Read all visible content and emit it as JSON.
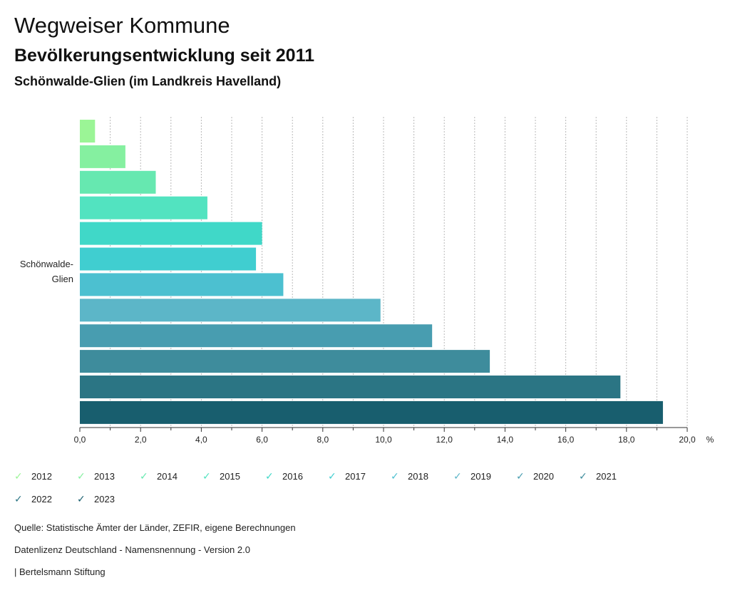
{
  "header": {
    "title": "Wegweiser Kommune",
    "subtitle": "Bevölkerungsentwicklung seit 2011",
    "region": "Schönwalde-Glien (im Landkreis Havelland)"
  },
  "chart_data": {
    "type": "bar",
    "orientation": "horizontal",
    "categories": [
      "Schönwalde-Glien"
    ],
    "category_label_lines": [
      "Schönwalde-",
      "Glien"
    ],
    "series": [
      {
        "name": "2012",
        "values": [
          0.5
        ],
        "color": "#9bf596"
      },
      {
        "name": "2013",
        "values": [
          1.5
        ],
        "color": "#85f0a0"
      },
      {
        "name": "2014",
        "values": [
          2.5
        ],
        "color": "#66e8b0"
      },
      {
        "name": "2015",
        "values": [
          4.2
        ],
        "color": "#52e3c0"
      },
      {
        "name": "2016",
        "values": [
          6.0
        ],
        "color": "#40d8c8"
      },
      {
        "name": "2017",
        "values": [
          5.8
        ],
        "color": "#40ced0"
      },
      {
        "name": "2018",
        "values": [
          6.7
        ],
        "color": "#4cc0d0"
      },
      {
        "name": "2019",
        "values": [
          9.9
        ],
        "color": "#5cb6c8"
      },
      {
        "name": "2020",
        "values": [
          11.6
        ],
        "color": "#489db0"
      },
      {
        "name": "2021",
        "values": [
          13.5
        ],
        "color": "#3e8c9c"
      },
      {
        "name": "2022",
        "values": [
          17.8
        ],
        "color": "#2b7584"
      },
      {
        "name": "2023",
        "values": [
          19.2
        ],
        "color": "#185e6e"
      }
    ],
    "xlim": [
      0,
      20
    ],
    "xticks": [
      "0,0",
      "2,0",
      "4,0",
      "6,0",
      "8,0",
      "10,0",
      "12,0",
      "14,0",
      "16,0",
      "18,0",
      "20,0"
    ],
    "unit": "%",
    "grid": true
  },
  "footer": {
    "source": "Quelle: Statistische Ämter der Länder, ZEFIR, eigene Berechnungen",
    "license": "Datenlizenz Deutschland - Namensnennung - Version 2.0",
    "publisher": "| Bertelsmann Stiftung"
  }
}
